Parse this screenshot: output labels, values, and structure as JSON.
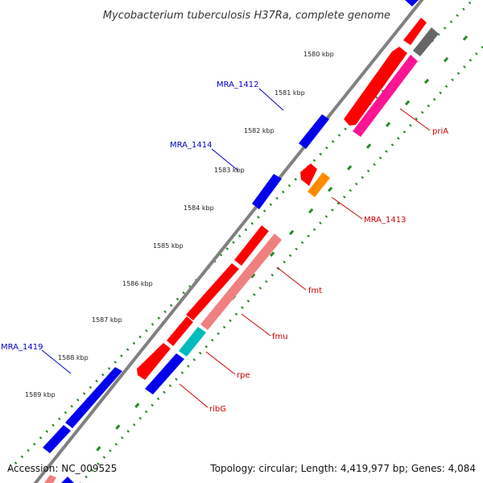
{
  "title": "Mycobacterium tuberculosis H37Ra, complete genome",
  "footer": {
    "accession": "Accession: NC_009525",
    "summary": "Topology: circular; Length: 4,419,977 bp; Genes: 4,084"
  },
  "colors": {
    "backbone": "#808080",
    "forward_gene": "#0000ee",
    "reverse_gene": "#ff0000",
    "rRNA": "#ff1493",
    "misc": "#666666",
    "orange": "#ff8c00",
    "salmon": "#f08080",
    "cyan": "#00bcbc",
    "dots_outer": "#228b22",
    "dots_inner": "#228b22",
    "label_forward": "#0000cc",
    "label_reverse": "#cc0000"
  },
  "kbp_ticks": [
    "1580 kbp",
    "1581 kbp",
    "1582 kbp",
    "1583 kbp",
    "1584 kbp",
    "1585 kbp",
    "1586 kbp",
    "1587 kbp",
    "1588 kbp",
    "1589 kbp"
  ],
  "gene_labels": [
    {
      "text": "MRA_1412",
      "strand": "forward"
    },
    {
      "text": "MRA_1414",
      "strand": "forward"
    },
    {
      "text": "MRA_1419",
      "strand": "forward"
    },
    {
      "text": "priA",
      "strand": "reverse"
    },
    {
      "text": "MRA_1413",
      "strand": "reverse"
    },
    {
      "text": "fmt",
      "strand": "reverse"
    },
    {
      "text": "fmu",
      "strand": "reverse"
    },
    {
      "text": "rpe",
      "strand": "reverse"
    },
    {
      "text": "ribG",
      "strand": "reverse"
    }
  ]
}
